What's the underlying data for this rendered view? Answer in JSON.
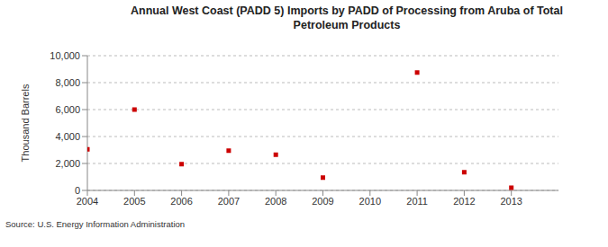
{
  "chart_data": {
    "type": "scatter",
    "title": "Annual West Coast (PADD 5) Imports by PADD of Processing from Aruba of Total Petroleum Products",
    "y_label": "Thousand Barrels",
    "source": "Source: U.S. Energy Information Administration",
    "x": [
      2004,
      2005,
      2006,
      2007,
      2008,
      2009,
      2011,
      2012,
      2013
    ],
    "values": [
      3050,
      6000,
      1950,
      2950,
      2650,
      950,
      8750,
      1350,
      200
    ],
    "color": "#cc0000",
    "marker": "square",
    "xlim": [
      2004,
      2014
    ],
    "xticks": [
      2004,
      2005,
      2006,
      2007,
      2008,
      2009,
      2010,
      2011,
      2012,
      2013
    ],
    "ylim": [
      0,
      10000
    ],
    "yticks": [
      0,
      {
        "value": 2000,
        "label": "2,000"
      },
      {
        "value": 4000,
        "label": "4,000"
      },
      {
        "value": 6000,
        "label": "6,000"
      },
      {
        "value": 8000,
        "label": "8,000"
      },
      {
        "value": 10000,
        "label": "10,000"
      }
    ],
    "grid": true
  }
}
